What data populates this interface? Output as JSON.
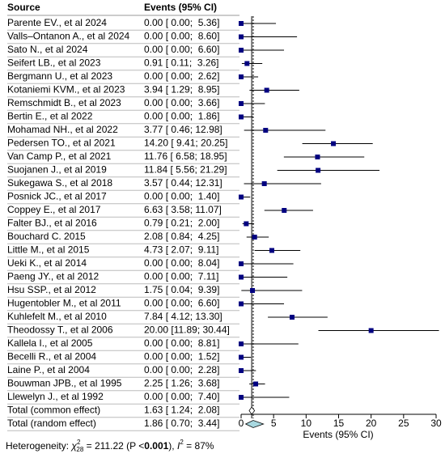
{
  "chart_data": {
    "type": "forest",
    "source_header": "Source",
    "ci_header": "Events (95% CI)",
    "x_label": "Events (95% CI)",
    "studies": [
      "Parente EV., et al 2024",
      "Valls–Ontanon A., et al 2024",
      "Sato N., et al 2024",
      "Seifert LB., et al 2023",
      "Bergmann U., et al 2023",
      "Kotaniemi KVM., et al 2023",
      "Remschmidt B., et al 2023",
      "Bertin E., et al 2022",
      "Mohamad NH., et al 2022",
      "Pedersen TO., et al 2021",
      "Van Camp P., et al 2021",
      "Suojanen J., et al 2019",
      "Sukegawa S., et al 2018",
      "Posnick JC., et al 2017",
      "Coppey E., et al 2017",
      "Falter BJ., et al 2016",
      "Bouchard C. 2015",
      "Little M., et al 2015",
      "Ueki K., et al 2014",
      "Paeng JY., et al 2012",
      "Hsu SSP., et al 2012",
      "Hugentobler M., et al 2011",
      "Kuhlefelt M., et al 2010",
      "Theodossy T., et al 2006",
      "Kallela I., et al 2005",
      "Becelli R., et al 2004",
      "Laine P., et al 2004",
      "Bouwman JPB., et al 1995",
      "Llewelyn J., et al 1992"
    ],
    "estimates": [
      0,
      0,
      0,
      0.91,
      0,
      3.94,
      0,
      0,
      3.77,
      14.2,
      11.76,
      11.84,
      3.57,
      0,
      6.63,
      0.79,
      2.08,
      4.73,
      0,
      0,
      1.75,
      0,
      7.84,
      20.0,
      0,
      0,
      0,
      2.25,
      0
    ],
    "lower": [
      0,
      0,
      0,
      0.11,
      0,
      1.29,
      0,
      0,
      0.46,
      9.41,
      6.58,
      5.56,
      0.44,
      0,
      3.58,
      0.21,
      0.84,
      2.07,
      0,
      0,
      0.04,
      0,
      4.12,
      11.89,
      0,
      0,
      0,
      1.26,
      0
    ],
    "upper": [
      5.36,
      8.6,
      6.6,
      3.26,
      2.62,
      8.95,
      3.66,
      1.86,
      12.98,
      20.25,
      18.95,
      21.29,
      12.31,
      1.4,
      11.07,
      2.0,
      4.25,
      9.11,
      8.04,
      7.11,
      9.39,
      6.6,
      13.3,
      30.44,
      8.81,
      1.52,
      2.28,
      3.68,
      7.4
    ],
    "ci_labels": [
      "0.00 [ 0.00;  5.36]",
      "0.00 [ 0.00;  8.60]",
      "0.00 [ 0.00;  6.60]",
      "0.91 [ 0.11;  3.26]",
      "0.00 [ 0.00;  2.62]",
      "3.94 [ 1.29;  8.95]",
      "0.00 [ 0.00;  3.66]",
      "0.00 [ 0.00;  1.86]",
      "3.77 [ 0.46; 12.98]",
      "14.20 [ 9.41; 20.25]",
      "11.76 [ 6.58; 18.95]",
      "11.84 [ 5.56; 21.29]",
      "3.57 [ 0.44; 12.31]",
      "0.00 [ 0.00;  1.40]",
      "6.63 [ 3.58; 11.07]",
      "0.79 [ 0.21;  2.00]",
      "2.08 [ 0.84;  4.25]",
      "4.73 [ 2.07;  9.11]",
      "0.00 [ 0.00;  8.04]",
      "0.00 [ 0.00;  7.11]",
      "1.75 [ 0.04;  9.39]",
      "0.00 [ 0.00;  6.60]",
      "7.84 [ 4.12; 13.30]",
      "20.00 [11.89; 30.44]",
      "0.00 [ 0.00;  8.81]",
      "0.00 [ 0.00;  1.52]",
      "0.00 [ 0.00;  2.28]",
      "2.25 [ 1.26;  3.68]",
      "0.00 [ 0.00;  7.40]"
    ],
    "pooled": [
      {
        "name": "Total (common effect)",
        "estimate": 1.63,
        "lower": 1.24,
        "upper": 2.08,
        "ci_label": "1.63 [ 1.24;  2.08]",
        "color": "#ffffff"
      },
      {
        "name": "Total (random effect)",
        "estimate": 1.86,
        "lower": 0.7,
        "upper": 3.44,
        "ci_label": "1.86 [ 0.70;  3.44]",
        "color": "#a8d8e0"
      }
    ],
    "color": "#000080",
    "xlim": [
      0,
      30
    ],
    "xticks": [
      0,
      5,
      10,
      15,
      20,
      25,
      30
    ],
    "heterogeneity": {
      "prefix": "Heterogeneity: ",
      "chi": "χ",
      "chi_sup": "2",
      "chi_sub": "28",
      "chi_text": " = 211.22 (P <",
      "p": "0.001",
      "mid": "), ",
      "i": "I",
      "i_sup": "2",
      "i_text": " = 87%"
    }
  }
}
